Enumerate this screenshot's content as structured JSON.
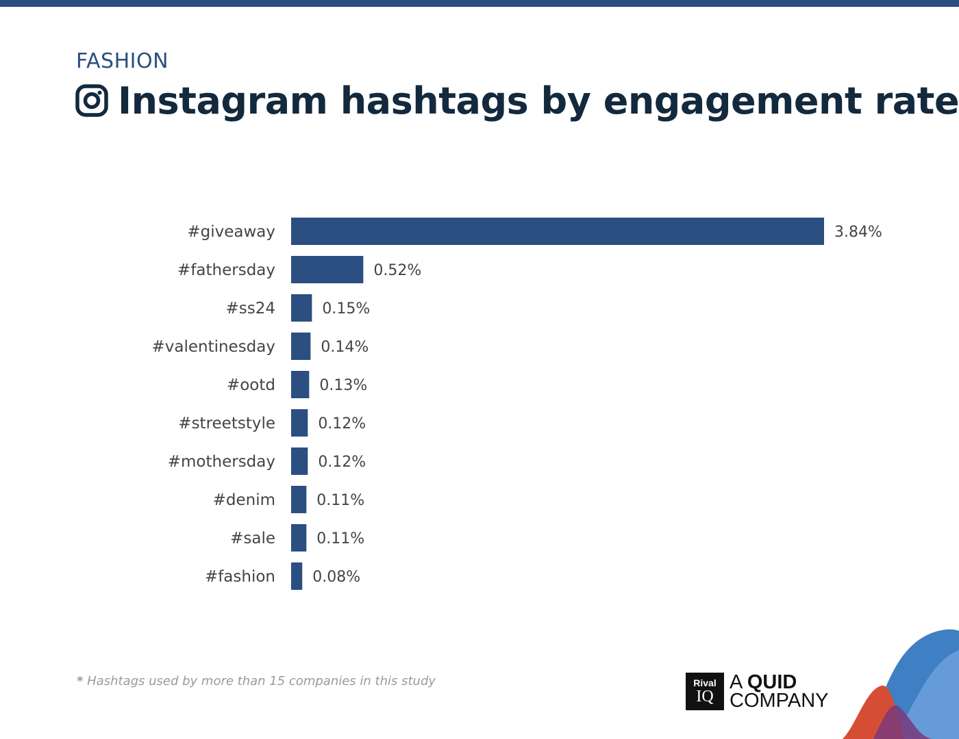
{
  "header": {
    "category": "FASHION",
    "title": "Instagram hashtags by engagement rate"
  },
  "footnote": {
    "star": "*",
    "text": "Hashtags used by more than 15 companies in this study"
  },
  "logo": {
    "rival": "Rival",
    "iq": "IQ",
    "line1_a": "A ",
    "line1_b": "QUID",
    "line2": "COMPANY"
  },
  "colors": {
    "bar": "#2a4f80",
    "accent": "#2a4f80",
    "title": "#13293d"
  },
  "chart_data": {
    "type": "bar",
    "orientation": "horizontal",
    "title": "Instagram hashtags by engagement rate",
    "categories": [
      "#giveaway",
      "#fathersday",
      "#ss24",
      "#valentinesday",
      "#ootd",
      "#streetstyle",
      "#mothersday",
      "#denim",
      "#sale",
      "#fashion"
    ],
    "values": [
      3.84,
      0.52,
      0.15,
      0.14,
      0.13,
      0.12,
      0.12,
      0.11,
      0.11,
      0.08
    ],
    "labels": [
      "3.84%",
      "0.52%",
      "0.15%",
      "0.14%",
      "0.13%",
      "0.12%",
      "0.12%",
      "0.11%",
      "0.11%",
      "0.08%"
    ],
    "unit": "%",
    "xlim": [
      0,
      3.84
    ],
    "grid": false,
    "legend": "none"
  }
}
